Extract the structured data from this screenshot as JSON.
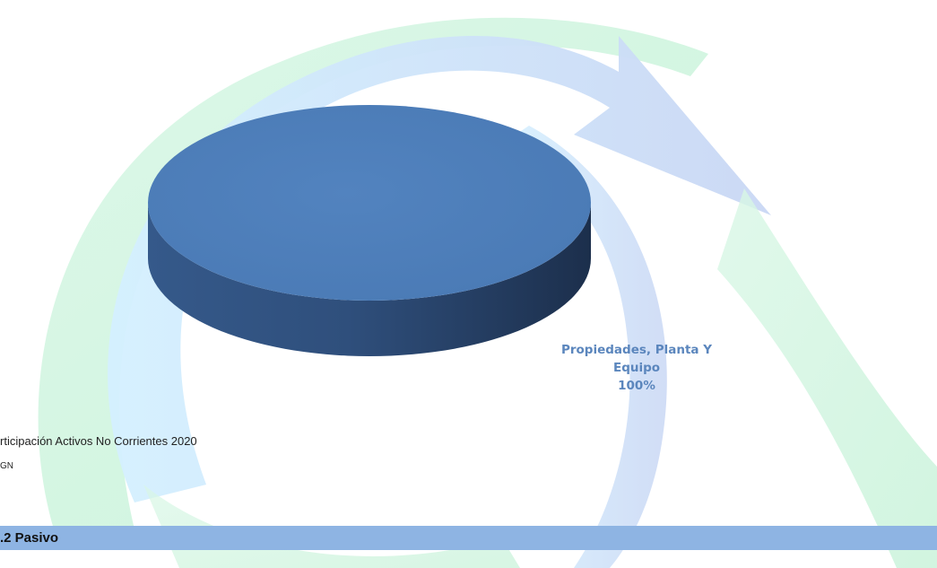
{
  "chart_data": {
    "type": "pie",
    "categories": [
      "Propiedades, Planta Y Equipo"
    ],
    "values": [
      100
    ],
    "data_labels": [
      {
        "category_line1": "Propiedades, Planta Y",
        "category_line2": "Equipo",
        "percent": "100%"
      }
    ],
    "colors": [
      "#4f81bd"
    ]
  },
  "caption": "rticipación Activos No Corrientes 2020",
  "source": "GN",
  "section": {
    "title": ".2 Pasivo"
  },
  "colors": {
    "section_bar": "#8eb4e3",
    "label": "#5b86bd"
  }
}
